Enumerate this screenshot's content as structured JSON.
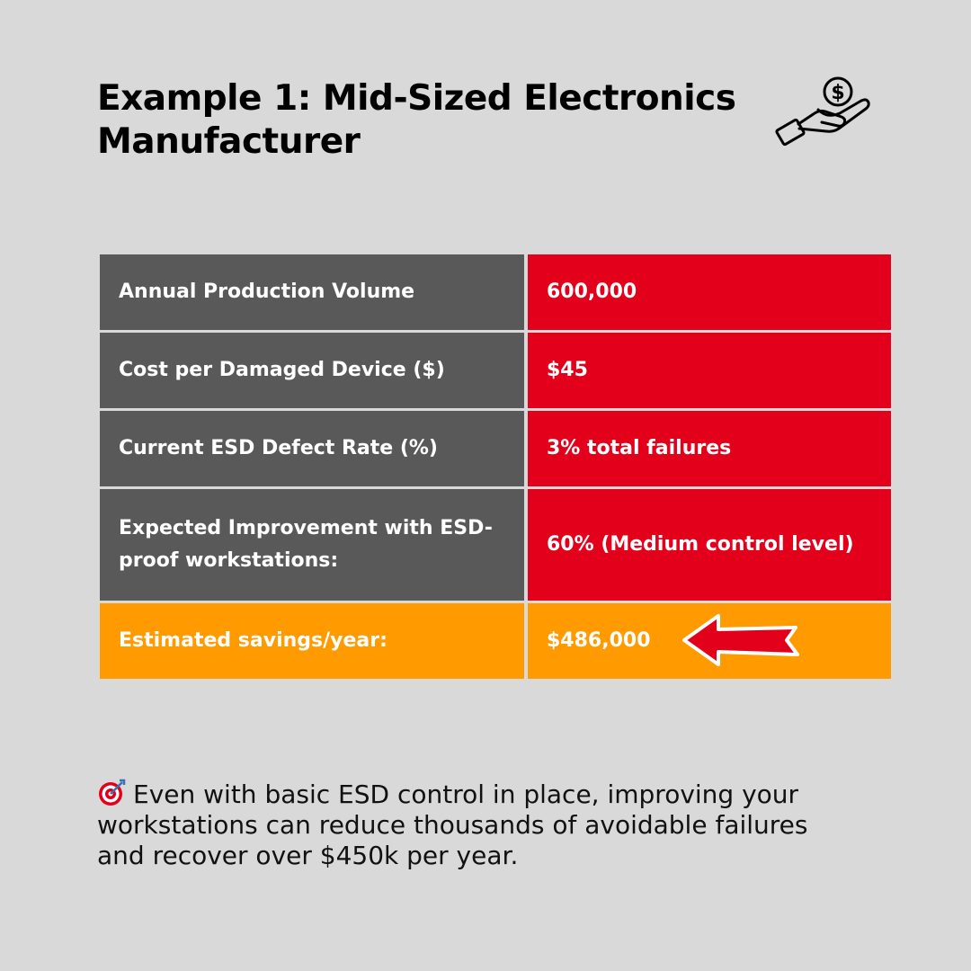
{
  "title": "Example 1: Mid-Sized Electronics Manufacturer",
  "icons": {
    "header": "hand-holding-dollar-icon",
    "footnote": "target-icon",
    "callout": "arrow-left-icon"
  },
  "colors": {
    "background": "#d9d9d9",
    "label_cell": "#595959",
    "value_cell": "#e3001b",
    "total_cell": "#ff9b00"
  },
  "table": {
    "rows": [
      {
        "label": "Annual Production Volume",
        "value": "600,000"
      },
      {
        "label": "Cost per Damaged Device ($)",
        "value": "$45"
      },
      {
        "label": "Current ESD Defect Rate (%)",
        "value": "3% total failures"
      },
      {
        "label": "Expected Improvement with ESD-proof workstations:",
        "value": "60% (Medium control level)"
      }
    ],
    "total": {
      "label": "Estimated savings/year:",
      "value": "$486,000"
    }
  },
  "footnote": "Even with basic ESD control in place, improving your workstations can reduce thousands of avoidable failures and recover over $450k per year."
}
